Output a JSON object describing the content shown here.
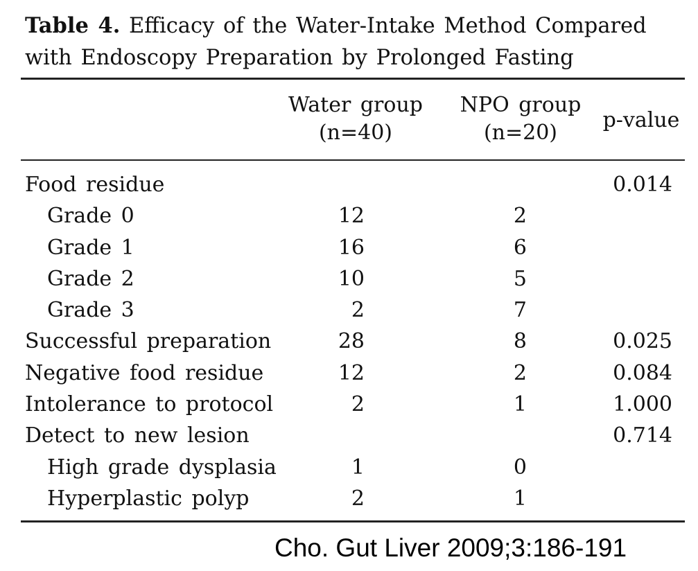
{
  "caption": {
    "label": "Table 4.",
    "text": " Efficacy of the Water-Intake Method Compared with Endoscopy Preparation by Prolonged Fasting"
  },
  "headers": {
    "water_l1": "Water group",
    "water_l2": "(n=40)",
    "npo_l1": "NPO group",
    "npo_l2": "(n=20)",
    "pvalue": "p-value"
  },
  "rows": [
    {
      "label": "Food residue",
      "water": "",
      "npo": "",
      "p": "0.014"
    },
    {
      "label": "Grade 0",
      "water": "12",
      "npo": "2",
      "p": ""
    },
    {
      "label": "Grade 1",
      "water": "16",
      "npo": "6",
      "p": ""
    },
    {
      "label": "Grade 2",
      "water": "10",
      "npo": "5",
      "p": ""
    },
    {
      "label": "Grade 3",
      "water": "2",
      "npo": "7",
      "p": ""
    },
    {
      "label": "Successful preparation",
      "water": "28",
      "npo": "8",
      "p": "0.025"
    },
    {
      "label": "Negative food residue",
      "water": "12",
      "npo": "2",
      "p": "0.084"
    },
    {
      "label": "Intolerance to protocol",
      "water": "2",
      "npo": "1",
      "p": "1.000"
    },
    {
      "label": "Detect to new lesion",
      "water": "",
      "npo": "",
      "p": "0.714"
    },
    {
      "label": "High grade dysplasia",
      "water": "1",
      "npo": "0",
      "p": ""
    },
    {
      "label": "Hyperplastic polyp",
      "water": "2",
      "npo": "1",
      "p": ""
    }
  ],
  "footer": "Cho. Gut Liver 2009;3:186-191"
}
